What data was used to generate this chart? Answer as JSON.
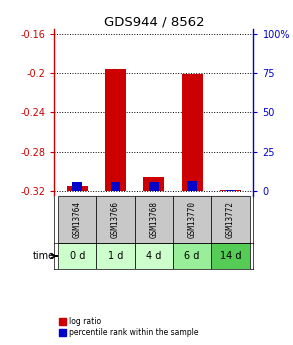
{
  "title": "GDS944 / 8562",
  "samples": [
    "GSM13764",
    "GSM13766",
    "GSM13768",
    "GSM13770",
    "GSM13772"
  ],
  "time_labels": [
    "0 d",
    "1 d",
    "4 d",
    "6 d",
    "14 d"
  ],
  "time_colors": [
    "#ccffcc",
    "#ccffcc",
    "#ccffcc",
    "#99ee99",
    "#55cc55"
  ],
  "log_ratio_values": [
    -0.315,
    -0.196,
    -0.306,
    -0.201,
    -0.3195
  ],
  "percentile_values": [
    5.5,
    5.5,
    5.5,
    6.0,
    0.3
  ],
  "baseline": -0.32,
  "ylim_left": [
    -0.325,
    -0.155
  ],
  "ylim_right": [
    -1.5625,
    100
  ],
  "yticks_left": [
    -0.32,
    -0.28,
    -0.24,
    -0.2,
    -0.16
  ],
  "ytick_labels_left": [
    "-0.32",
    "-0.28",
    "-0.24",
    "-0.2",
    "-0.16"
  ],
  "yticks_right": [
    0,
    25,
    50,
    75,
    100
  ],
  "ytick_labels_right": [
    "0",
    "25",
    "50",
    "75",
    "100%"
  ],
  "bar_color_red": "#cc0000",
  "bar_color_blue": "#0000cc",
  "left_tick_color": "#cc0000",
  "right_tick_color": "#0000cc",
  "sample_bg_color": "#c8c8c8",
  "legend_red": "log ratio",
  "legend_blue": "percentile rank within the sample"
}
